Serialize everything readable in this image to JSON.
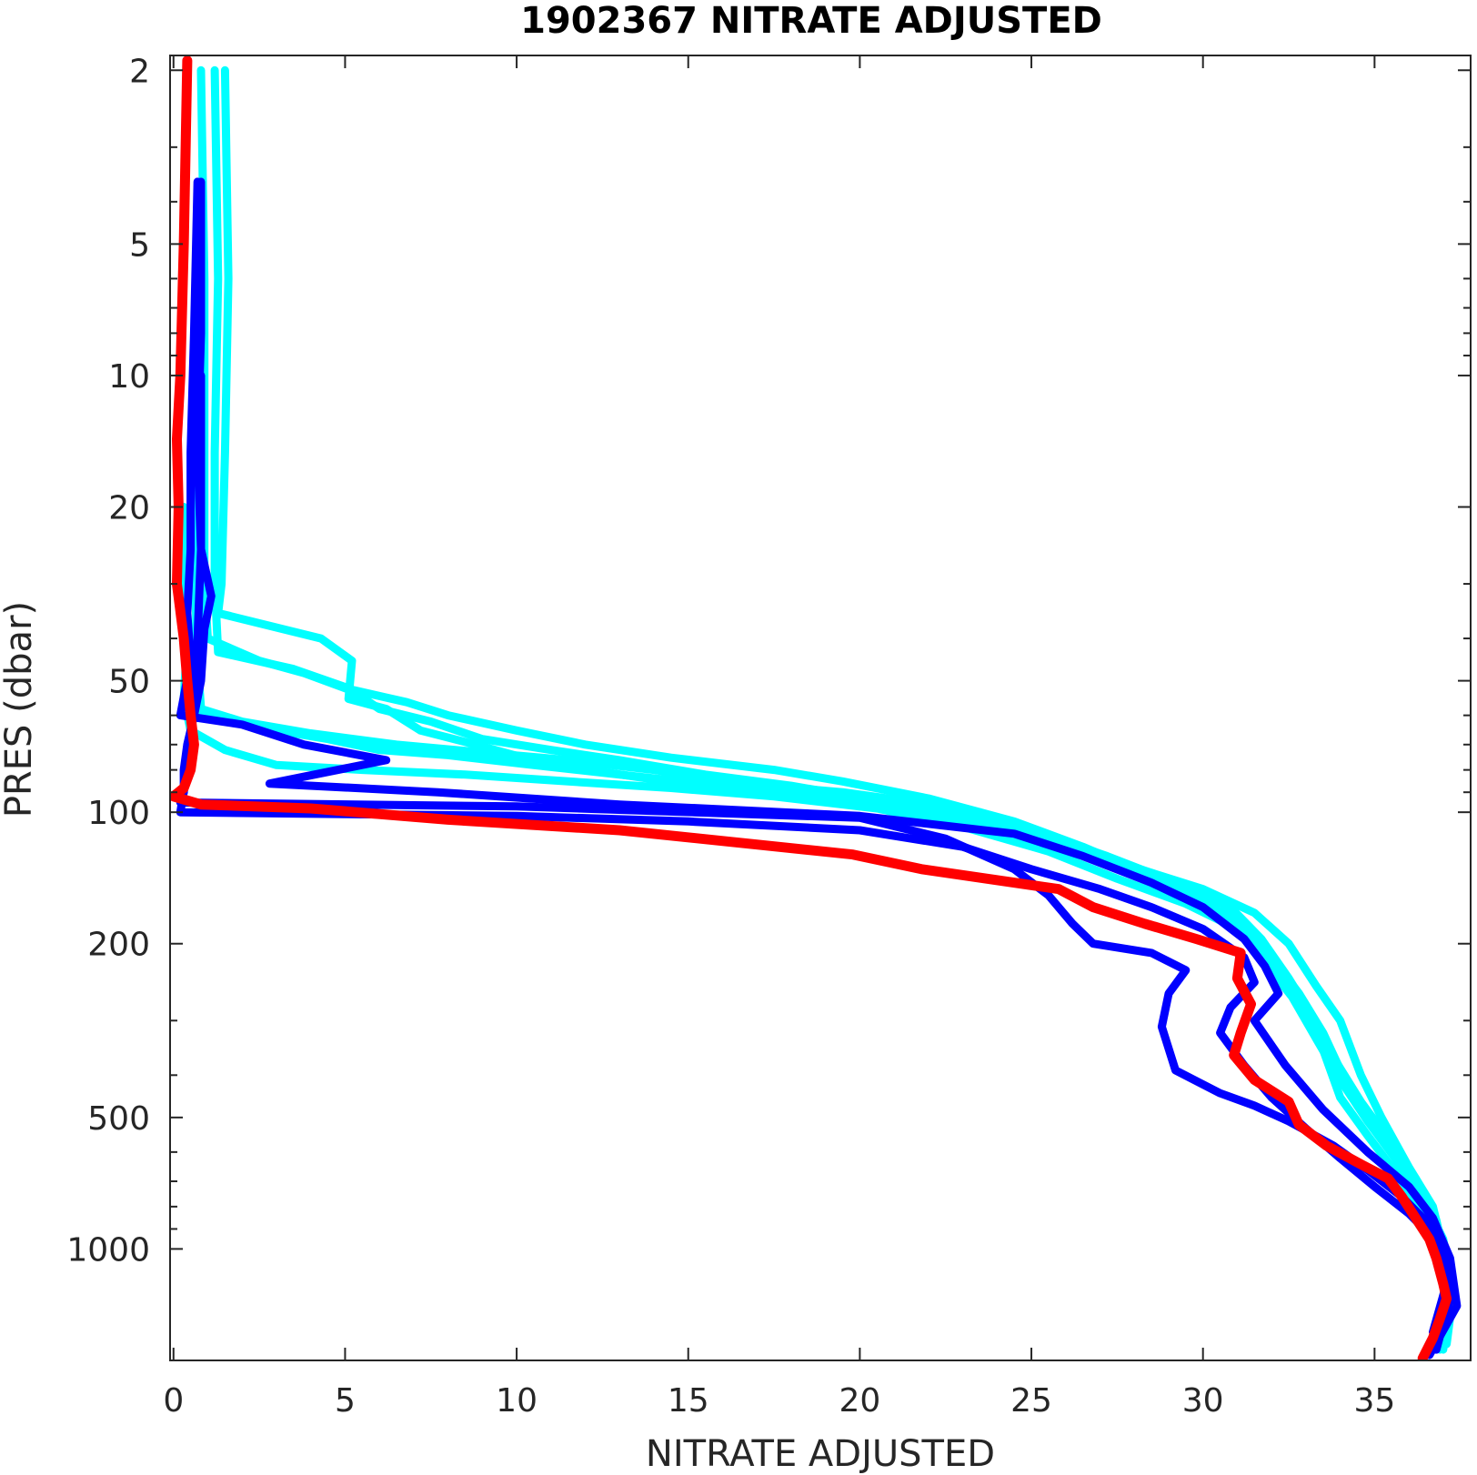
{
  "chart_data": {
    "type": "line",
    "title": "1902367  NITRATE ADJUSTED",
    "xlabel": "NITRATE ADJUSTED",
    "ylabel": "PRES (dbar)",
    "xlim": [
      -0.1,
      37.8
    ],
    "ylim": [
      1.85,
      1800
    ],
    "yscale": "log",
    "y_reversed": true,
    "grid": false,
    "xticks": [
      0,
      5,
      10,
      15,
      20,
      25,
      30,
      35
    ],
    "xtick_labels": [
      "0",
      "5",
      "10",
      "15",
      "20",
      "25",
      "30",
      "35"
    ],
    "yticks": [
      2,
      5,
      10,
      20,
      50,
      100,
      200,
      500,
      1000
    ],
    "ytick_labels": [
      "2",
      "5",
      "10",
      "20",
      "50",
      "100",
      "200",
      "500",
      "1000"
    ],
    "colors": {
      "cyan": "#00ffff",
      "blue": "#0000ff",
      "red": "#ff0000",
      "axis": "#262626"
    },
    "series": [
      {
        "color": "#00ffff",
        "points": [
          [
            1.5,
            2
          ],
          [
            1.6,
            6
          ],
          [
            1.5,
            15
          ],
          [
            1.4,
            30
          ],
          [
            1.3,
            35
          ],
          [
            4.3,
            40
          ],
          [
            5.2,
            45
          ],
          [
            5.1,
            55
          ],
          [
            6.2,
            58
          ],
          [
            7.2,
            65
          ],
          [
            8.8,
            70
          ],
          [
            10.2,
            75
          ],
          [
            12.1,
            80
          ],
          [
            14.4,
            85
          ],
          [
            17.0,
            88
          ],
          [
            20.0,
            92
          ],
          [
            23.5,
            100
          ],
          [
            25.5,
            115
          ],
          [
            27.5,
            130
          ],
          [
            30.0,
            150
          ],
          [
            31.5,
            170
          ],
          [
            32.5,
            200
          ],
          [
            33.3,
            250
          ],
          [
            34.0,
            300
          ],
          [
            34.6,
            400
          ],
          [
            35.2,
            500
          ],
          [
            36.0,
            650
          ],
          [
            36.7,
            800
          ],
          [
            37.0,
            1000
          ],
          [
            37.2,
            1300
          ],
          [
            37.0,
            1700
          ]
        ]
      },
      {
        "color": "#00ffff",
        "points": [
          [
            0.8,
            2
          ],
          [
            0.9,
            6
          ],
          [
            0.9,
            15
          ],
          [
            0.9,
            30
          ],
          [
            1.0,
            40
          ],
          [
            2.5,
            45
          ],
          [
            3.8,
            48
          ],
          [
            5.0,
            52
          ],
          [
            6.8,
            56
          ],
          [
            8.0,
            60
          ],
          [
            10.0,
            65
          ],
          [
            12.0,
            70
          ],
          [
            14.5,
            75
          ],
          [
            17.5,
            80
          ],
          [
            19.5,
            85
          ],
          [
            22.0,
            93
          ],
          [
            24.5,
            105
          ],
          [
            26.5,
            120
          ],
          [
            28.5,
            140
          ],
          [
            30.5,
            160
          ],
          [
            31.5,
            190
          ],
          [
            32.3,
            230
          ],
          [
            33.0,
            280
          ],
          [
            33.5,
            350
          ],
          [
            34.0,
            450
          ],
          [
            34.8,
            550
          ],
          [
            35.5,
            650
          ],
          [
            36.2,
            800
          ],
          [
            36.8,
            1000
          ],
          [
            37.1,
            1300
          ],
          [
            36.9,
            1700
          ]
        ]
      },
      {
        "color": "#00ffff",
        "points": [
          [
            1.2,
            2
          ],
          [
            1.3,
            6
          ],
          [
            1.2,
            15
          ],
          [
            1.2,
            30
          ],
          [
            1.3,
            43
          ],
          [
            3.5,
            47
          ],
          [
            5.1,
            52
          ],
          [
            6.0,
            58
          ],
          [
            7.5,
            62
          ],
          [
            9.0,
            68
          ],
          [
            11.0,
            72
          ],
          [
            13.0,
            76
          ],
          [
            15.5,
            82
          ],
          [
            18.0,
            87
          ],
          [
            20.5,
            94
          ],
          [
            23.5,
            104
          ],
          [
            25.8,
            118
          ],
          [
            27.8,
            135
          ],
          [
            29.8,
            155
          ],
          [
            31.0,
            180
          ],
          [
            32.0,
            215
          ],
          [
            32.8,
            260
          ],
          [
            33.5,
            320
          ],
          [
            34.2,
            420
          ],
          [
            34.9,
            520
          ],
          [
            35.6,
            620
          ],
          [
            36.4,
            760
          ],
          [
            37.0,
            950
          ],
          [
            37.3,
            1250
          ],
          [
            37.1,
            1650
          ]
        ]
      },
      {
        "color": "#00ffff",
        "points": [
          [
            0.6,
            14
          ],
          [
            0.7,
            30
          ],
          [
            0.6,
            50
          ],
          [
            0.7,
            60
          ],
          [
            2.5,
            64
          ],
          [
            4.5,
            68
          ],
          [
            6.0,
            72
          ],
          [
            8.0,
            74
          ],
          [
            10.5,
            78
          ],
          [
            13.0,
            82
          ],
          [
            16.0,
            87
          ],
          [
            19.0,
            92
          ],
          [
            22.0,
            100
          ],
          [
            24.5,
            112
          ],
          [
            26.8,
            128
          ],
          [
            28.8,
            148
          ],
          [
            30.5,
            170
          ],
          [
            31.6,
            200
          ],
          [
            32.4,
            245
          ],
          [
            33.1,
            300
          ],
          [
            33.8,
            380
          ],
          [
            34.5,
            470
          ],
          [
            35.3,
            570
          ],
          [
            36.1,
            700
          ],
          [
            36.8,
            880
          ],
          [
            37.2,
            1150
          ],
          [
            37.0,
            1550
          ]
        ]
      },
      {
        "color": "#00ffff",
        "points": [
          [
            0.3,
            20
          ],
          [
            0.4,
            40
          ],
          [
            0.3,
            55
          ],
          [
            0.5,
            65
          ],
          [
            1.5,
            72
          ],
          [
            3.0,
            78
          ],
          [
            5.5,
            80
          ],
          [
            8.5,
            82
          ],
          [
            11.5,
            85
          ],
          [
            14.5,
            88
          ],
          [
            17.5,
            92
          ],
          [
            20.5,
            98
          ],
          [
            23.0,
            108
          ],
          [
            25.5,
            123
          ],
          [
            27.5,
            142
          ],
          [
            29.5,
            162
          ],
          [
            31.0,
            185
          ],
          [
            31.8,
            220
          ],
          [
            32.6,
            265
          ],
          [
            33.3,
            330
          ],
          [
            34.0,
            410
          ],
          [
            34.8,
            510
          ],
          [
            35.6,
            620
          ],
          [
            36.3,
            760
          ],
          [
            36.9,
            950
          ],
          [
            37.2,
            1250
          ],
          [
            37.0,
            1650
          ]
        ]
      },
      {
        "color": "#00ffff",
        "points": [
          [
            0.6,
            25
          ],
          [
            0.7,
            45
          ],
          [
            0.8,
            58
          ],
          [
            2.0,
            62
          ],
          [
            4.0,
            66
          ],
          [
            6.5,
            70
          ],
          [
            9.0,
            73
          ],
          [
            11.5,
            76
          ],
          [
            14.0,
            80
          ],
          [
            16.5,
            86
          ],
          [
            19.5,
            90
          ],
          [
            22.5,
            97
          ],
          [
            25.0,
            110
          ],
          [
            27.2,
            126
          ],
          [
            29.2,
            145
          ],
          [
            30.8,
            165
          ],
          [
            31.7,
            195
          ],
          [
            32.5,
            240
          ],
          [
            33.2,
            295
          ],
          [
            33.9,
            375
          ],
          [
            34.6,
            460
          ],
          [
            35.4,
            560
          ],
          [
            36.2,
            690
          ],
          [
            36.8,
            860
          ],
          [
            37.1,
            1120
          ],
          [
            36.9,
            1500
          ]
        ]
      },
      {
        "color": "#0000ff",
        "points": [
          [
            0.7,
            3.6
          ],
          [
            0.6,
            8
          ],
          [
            0.5,
            15
          ],
          [
            0.5,
            25
          ],
          [
            0.4,
            35
          ],
          [
            0.5,
            45
          ],
          [
            0.2,
            60
          ],
          [
            2.0,
            63
          ],
          [
            3.8,
            70
          ],
          [
            6.2,
            76
          ],
          [
            2.8,
            86
          ],
          [
            7.7,
            90
          ],
          [
            13.0,
            96
          ],
          [
            20.0,
            102
          ],
          [
            24.5,
            112
          ],
          [
            26.5,
            126
          ],
          [
            28.5,
            145
          ],
          [
            30.0,
            165
          ],
          [
            31.2,
            195
          ],
          [
            31.8,
            225
          ],
          [
            32.2,
            260
          ],
          [
            31.5,
            300
          ],
          [
            32.4,
            380
          ],
          [
            33.5,
            480
          ],
          [
            34.8,
            600
          ],
          [
            36.0,
            720
          ],
          [
            36.7,
            850
          ],
          [
            37.2,
            1050
          ],
          [
            37.4,
            1350
          ],
          [
            36.6,
            1750
          ]
        ]
      },
      {
        "color": "#0000ff",
        "points": [
          [
            0.8,
            3.6
          ],
          [
            0.8,
            8
          ],
          [
            0.7,
            15
          ],
          [
            0.8,
            25
          ],
          [
            1.1,
            32
          ],
          [
            0.9,
            38
          ],
          [
            0.8,
            50
          ],
          [
            0.6,
            60
          ],
          [
            0.4,
            70
          ],
          [
            0.3,
            80
          ],
          [
            0.3,
            90
          ],
          [
            0.2,
            95
          ],
          [
            10.0,
            97
          ],
          [
            20.0,
            103
          ],
          [
            22.5,
            115
          ],
          [
            24.5,
            135
          ],
          [
            25.5,
            155
          ],
          [
            26.2,
            180
          ],
          [
            26.8,
            200
          ],
          [
            28.5,
            210
          ],
          [
            29.5,
            230
          ],
          [
            29.0,
            260
          ],
          [
            28.8,
            310
          ],
          [
            29.2,
            390
          ],
          [
            30.5,
            440
          ],
          [
            31.5,
            470
          ],
          [
            32.5,
            510
          ],
          [
            33.8,
            580
          ],
          [
            34.8,
            660
          ],
          [
            35.8,
            760
          ],
          [
            36.6,
            880
          ],
          [
            37.0,
            1000
          ],
          [
            37.2,
            1300
          ],
          [
            36.8,
            1700
          ]
        ]
      },
      {
        "color": "#0000ff",
        "points": [
          [
            0.8,
            10
          ],
          [
            0.8,
            25
          ],
          [
            0.7,
            40
          ],
          [
            0.6,
            55
          ],
          [
            0.4,
            80
          ],
          [
            0.2,
            100
          ],
          [
            5.0,
            101
          ],
          [
            10.0,
            102
          ],
          [
            15.0,
            105
          ],
          [
            20.0,
            110
          ],
          [
            23.0,
            120
          ],
          [
            25.0,
            135
          ],
          [
            27.0,
            150
          ],
          [
            28.5,
            165
          ],
          [
            30.0,
            185
          ],
          [
            31.2,
            215
          ],
          [
            31.5,
            245
          ],
          [
            30.8,
            280
          ],
          [
            30.5,
            320
          ],
          [
            31.2,
            380
          ],
          [
            32.0,
            450
          ],
          [
            33.0,
            530
          ],
          [
            34.0,
            620
          ],
          [
            35.0,
            720
          ],
          [
            36.0,
            830
          ],
          [
            36.8,
            960
          ],
          [
            37.1,
            1200
          ],
          [
            36.7,
            1550
          ]
        ]
      },
      {
        "color": "#ff0000",
        "points": [
          [
            0.4,
            1.9
          ],
          [
            0.3,
            5
          ],
          [
            0.2,
            10
          ],
          [
            0.1,
            14
          ],
          [
            0.15,
            20
          ],
          [
            0.1,
            30
          ],
          [
            0.3,
            40
          ],
          [
            0.4,
            50
          ],
          [
            0.5,
            60
          ],
          [
            0.6,
            70
          ],
          [
            0.5,
            80
          ],
          [
            0.3,
            88
          ],
          [
            0.0,
            92
          ],
          [
            0.8,
            96
          ],
          [
            4.0,
            98
          ],
          [
            8.0,
            104
          ],
          [
            13.0,
            110
          ],
          [
            19.8,
            125
          ],
          [
            21.8,
            135
          ],
          [
            25.8,
            150
          ],
          [
            26.8,
            165
          ],
          [
            28.3,
            180
          ],
          [
            29.8,
            195
          ],
          [
            31.1,
            210
          ],
          [
            31.0,
            240
          ],
          [
            31.4,
            275
          ],
          [
            31.1,
            320
          ],
          [
            30.9,
            360
          ],
          [
            31.5,
            410
          ],
          [
            32.5,
            460
          ],
          [
            32.8,
            520
          ],
          [
            33.6,
            580
          ],
          [
            34.6,
            640
          ],
          [
            35.4,
            690
          ],
          [
            35.8,
            760
          ],
          [
            36.2,
            850
          ],
          [
            36.6,
            950
          ],
          [
            36.8,
            1050
          ],
          [
            37.0,
            1200
          ],
          [
            37.1,
            1300
          ],
          [
            36.9,
            1450
          ],
          [
            36.7,
            1600
          ],
          [
            36.4,
            1780
          ]
        ]
      }
    ]
  }
}
